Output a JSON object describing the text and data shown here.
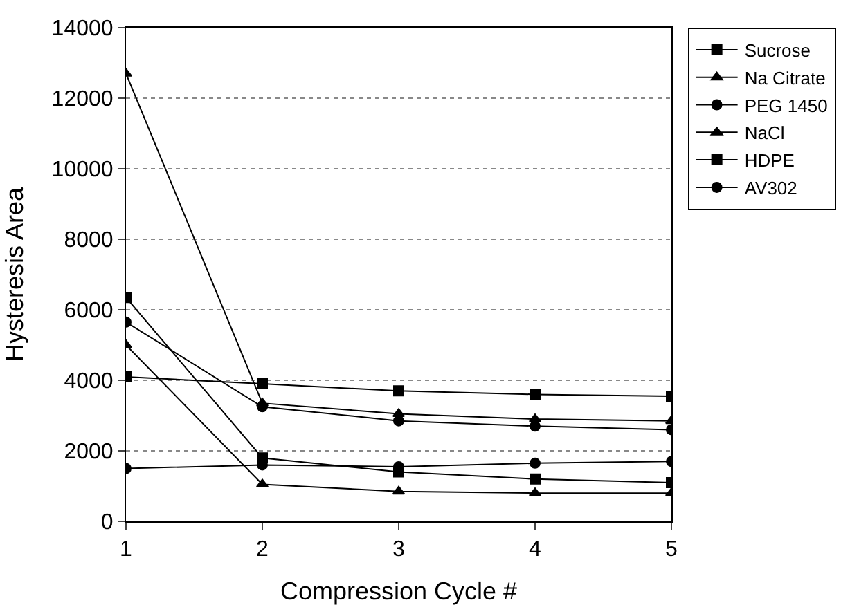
{
  "chart_data": {
    "type": "line",
    "xlabel": "Compression Cycle #",
    "ylabel": "Hysteresis Area",
    "x": [
      1,
      2,
      3,
      4,
      5
    ],
    "xlim": [
      1,
      5
    ],
    "xticks": [
      1,
      2,
      3,
      4,
      5
    ],
    "ylim": [
      0,
      14000
    ],
    "yticks": [
      0,
      2000,
      4000,
      6000,
      8000,
      10000,
      12000,
      14000
    ],
    "grid": "y",
    "legend": "right",
    "line_style": "solid",
    "series": [
      {
        "name": "Sucrose",
        "color": "#000000",
        "marker": "square",
        "values": [
          6350,
          1800,
          1400,
          1200,
          1100
        ]
      },
      {
        "name": "Na Citrate",
        "color": "#000000",
        "marker": "triangle",
        "values": [
          5000,
          1050,
          850,
          800,
          800
        ]
      },
      {
        "name": "PEG 1450",
        "color": "#000000",
        "marker": "circle",
        "values": [
          1500,
          1600,
          1550,
          1650,
          1700
        ]
      },
      {
        "name": "NaCl",
        "color": "#000000",
        "marker": "triangle",
        "values": [
          12700,
          3350,
          3050,
          2900,
          2850
        ]
      },
      {
        "name": "HDPE",
        "color": "#000000",
        "marker": "square",
        "values": [
          4100,
          3900,
          3700,
          3600,
          3550
        ]
      },
      {
        "name": "AV302",
        "color": "#000000",
        "marker": "circle",
        "values": [
          5650,
          3250,
          2850,
          2700,
          2600
        ]
      }
    ]
  }
}
